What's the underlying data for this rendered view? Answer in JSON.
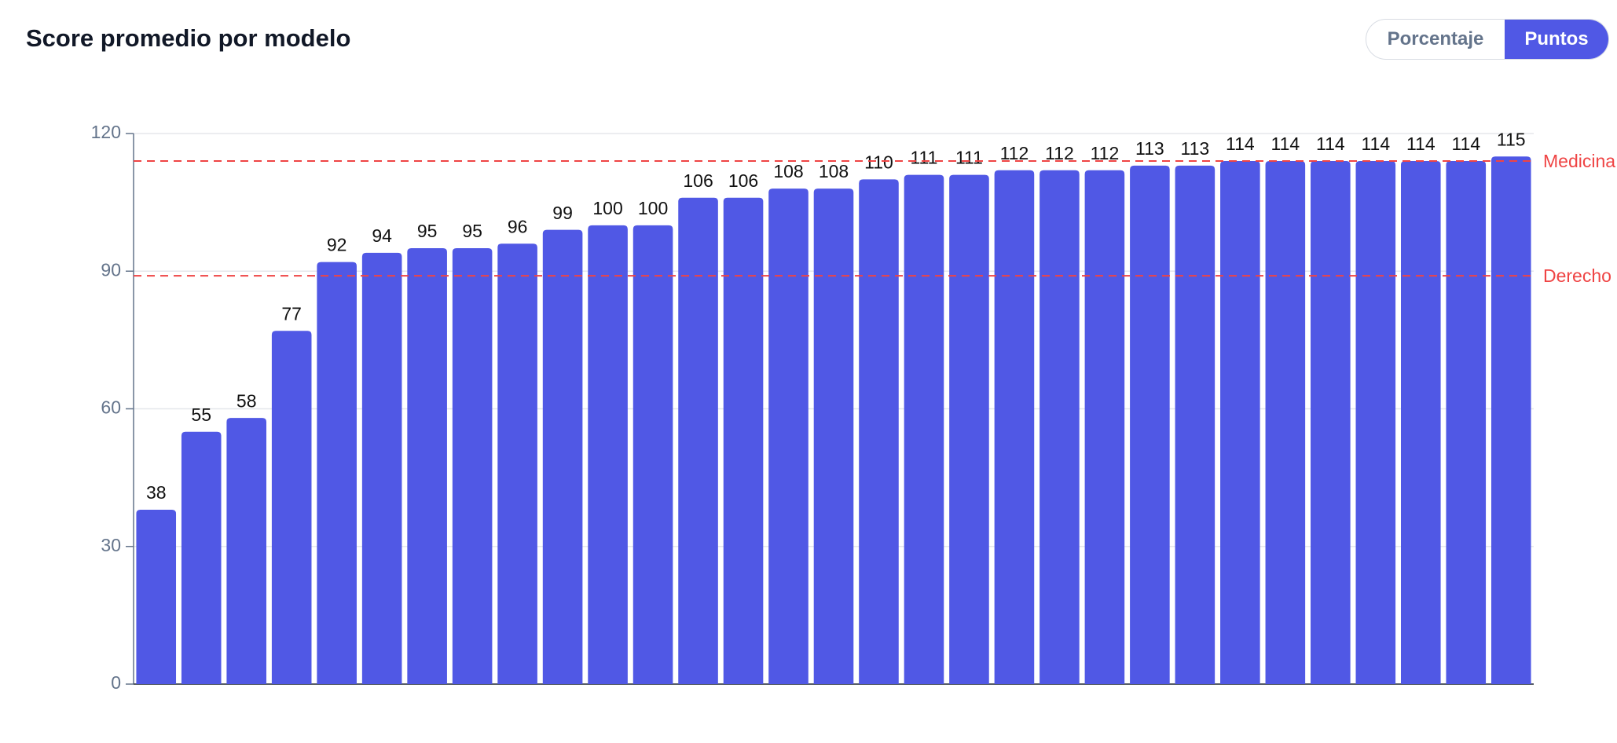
{
  "toggle": {
    "options": [
      "Porcentaje",
      "Puntos"
    ],
    "active": 1
  },
  "chart_data": {
    "type": "bar",
    "title": "Score promedio por modelo",
    "values": [
      38,
      55,
      58,
      77,
      92,
      94,
      95,
      95,
      96,
      99,
      100,
      100,
      106,
      106,
      108,
      108,
      110,
      111,
      111,
      112,
      112,
      112,
      113,
      113,
      114,
      114,
      114,
      114,
      114,
      114,
      115
    ],
    "color": "#5058e5",
    "ylim": [
      0,
      120
    ],
    "yticks": [
      0,
      30,
      60,
      90,
      120
    ],
    "grid": true,
    "reference_lines": [
      {
        "label": "Medicina",
        "value": 114,
        "color": "#ef4444"
      },
      {
        "label": "Derecho",
        "value": 89,
        "color": "#ef4444"
      }
    ]
  }
}
